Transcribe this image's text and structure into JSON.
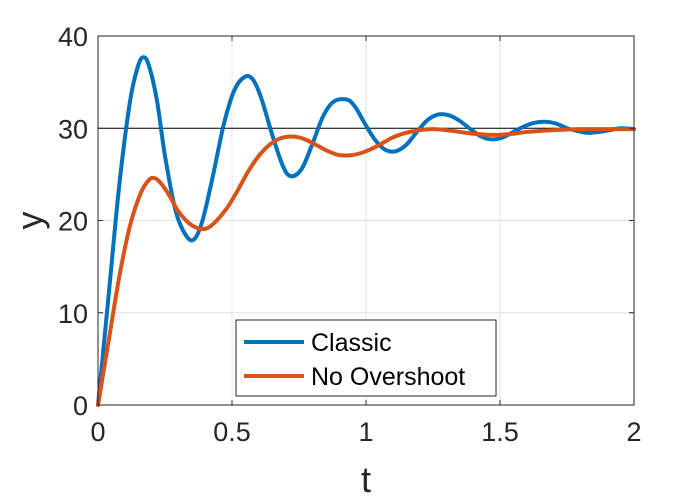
{
  "chart_data": {
    "type": "line",
    "title": "",
    "xlabel": "t",
    "ylabel": "y",
    "xlim": [
      0,
      2
    ],
    "ylim": [
      0,
      40
    ],
    "xticks": [
      "0",
      "0.5",
      "1",
      "1.5",
      "2"
    ],
    "yticks": [
      "0",
      "10",
      "20",
      "30",
      "40"
    ],
    "grid": true,
    "legend_position": "bottom-center",
    "reference_line": {
      "y": 30,
      "color": "#000000"
    },
    "series": [
      {
        "name": "Classic",
        "color": "#0072BD",
        "x": [
          0,
          0.04,
          0.08,
          0.12,
          0.15,
          0.17,
          0.19,
          0.22,
          0.25,
          0.29,
          0.33,
          0.36,
          0.39,
          0.43,
          0.47,
          0.51,
          0.55,
          0.58,
          0.61,
          0.65,
          0.69,
          0.72,
          0.76,
          0.8,
          0.84,
          0.88,
          0.93,
          0.96,
          0.99,
          1.03,
          1.07,
          1.11,
          1.15,
          1.19,
          1.23,
          1.27,
          1.31,
          1.35,
          1.39,
          1.43,
          1.47,
          1.51,
          1.55,
          1.59,
          1.63,
          1.67,
          1.71,
          1.75,
          1.79,
          1.83,
          1.87,
          1.91,
          1.95,
          2.0
        ],
        "y": [
          0,
          12,
          24,
          33,
          36.8,
          37.7,
          36.8,
          33,
          27,
          21,
          18.3,
          18,
          20,
          25,
          30.5,
          34.2,
          35.6,
          35.2,
          33.2,
          29.3,
          25.9,
          24.8,
          25.6,
          28.3,
          31.3,
          32.9,
          33.1,
          32.3,
          30.8,
          28.9,
          27.7,
          27.5,
          28.2,
          29.6,
          30.9,
          31.5,
          31.4,
          30.8,
          29.9,
          29.1,
          28.8,
          29.0,
          29.6,
          30.2,
          30.6,
          30.7,
          30.5,
          30.0,
          29.7,
          29.5,
          29.6,
          29.8,
          30.0,
          29.9
        ]
      },
      {
        "name": "No Overshoot",
        "color": "#D95319",
        "x": [
          0,
          0.04,
          0.08,
          0.12,
          0.16,
          0.19,
          0.21,
          0.23,
          0.26,
          0.3,
          0.34,
          0.38,
          0.41,
          0.44,
          0.48,
          0.52,
          0.56,
          0.6,
          0.64,
          0.68,
          0.72,
          0.75,
          0.78,
          0.82,
          0.86,
          0.9,
          0.95,
          1.0,
          1.05,
          1.1,
          1.15,
          1.2,
          1.25,
          1.3,
          1.35,
          1.4,
          1.45,
          1.5,
          1.55,
          1.6,
          1.7,
          1.8,
          1.9,
          2.0
        ],
        "y": [
          0,
          7,
          14,
          19.5,
          23,
          24.4,
          24.6,
          24.2,
          23,
          21,
          19.7,
          19.1,
          19.2,
          19.9,
          21.3,
          23.2,
          25.3,
          27.0,
          28.2,
          28.9,
          29.1,
          29.0,
          28.7,
          28.1,
          27.5,
          27.1,
          27.1,
          27.5,
          28.2,
          29.0,
          29.5,
          29.8,
          29.9,
          29.8,
          29.6,
          29.4,
          29.3,
          29.3,
          29.4,
          29.6,
          29.8,
          29.9,
          29.9,
          29.9
        ]
      }
    ]
  }
}
